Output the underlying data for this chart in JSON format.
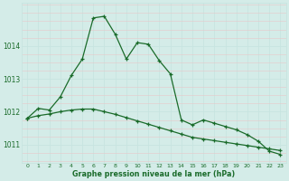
{
  "x": [
    0,
    1,
    2,
    3,
    4,
    5,
    6,
    7,
    8,
    9,
    10,
    11,
    12,
    13,
    14,
    15,
    16,
    17,
    18,
    19,
    20,
    21,
    22,
    23
  ],
  "line1": [
    1011.8,
    1012.1,
    1012.05,
    1012.45,
    1013.1,
    1013.6,
    1014.85,
    1014.9,
    1014.35,
    1013.6,
    1014.1,
    1014.05,
    1013.55,
    1013.15,
    1011.75,
    1011.6,
    1011.75,
    1011.65,
    1011.55,
    1011.45,
    1011.3,
    1011.1,
    1010.8,
    1010.7
  ],
  "line2": [
    1011.8,
    1011.88,
    1011.93,
    1012.0,
    1012.05,
    1012.08,
    1012.08,
    1012.0,
    1011.92,
    1011.82,
    1011.72,
    1011.62,
    1011.52,
    1011.42,
    1011.32,
    1011.22,
    1011.17,
    1011.12,
    1011.07,
    1011.02,
    1010.97,
    1010.92,
    1010.87,
    1010.82
  ],
  "bg_color": "#d4ece8",
  "grid_color_major": "#c8e4e0",
  "grid_color_minor": "#e2f2f0",
  "line_color": "#1a6b2a",
  "ylabel_ticks": [
    1011,
    1012,
    1013,
    1014
  ],
  "xlabel": "Graphe pression niveau de la mer (hPa)",
  "ylim": [
    1010.45,
    1015.3
  ],
  "xlim": [
    -0.5,
    23.5
  ],
  "marker": "+",
  "markersize": 3.5,
  "markeredgewidth": 0.9,
  "linewidth": 0.9
}
